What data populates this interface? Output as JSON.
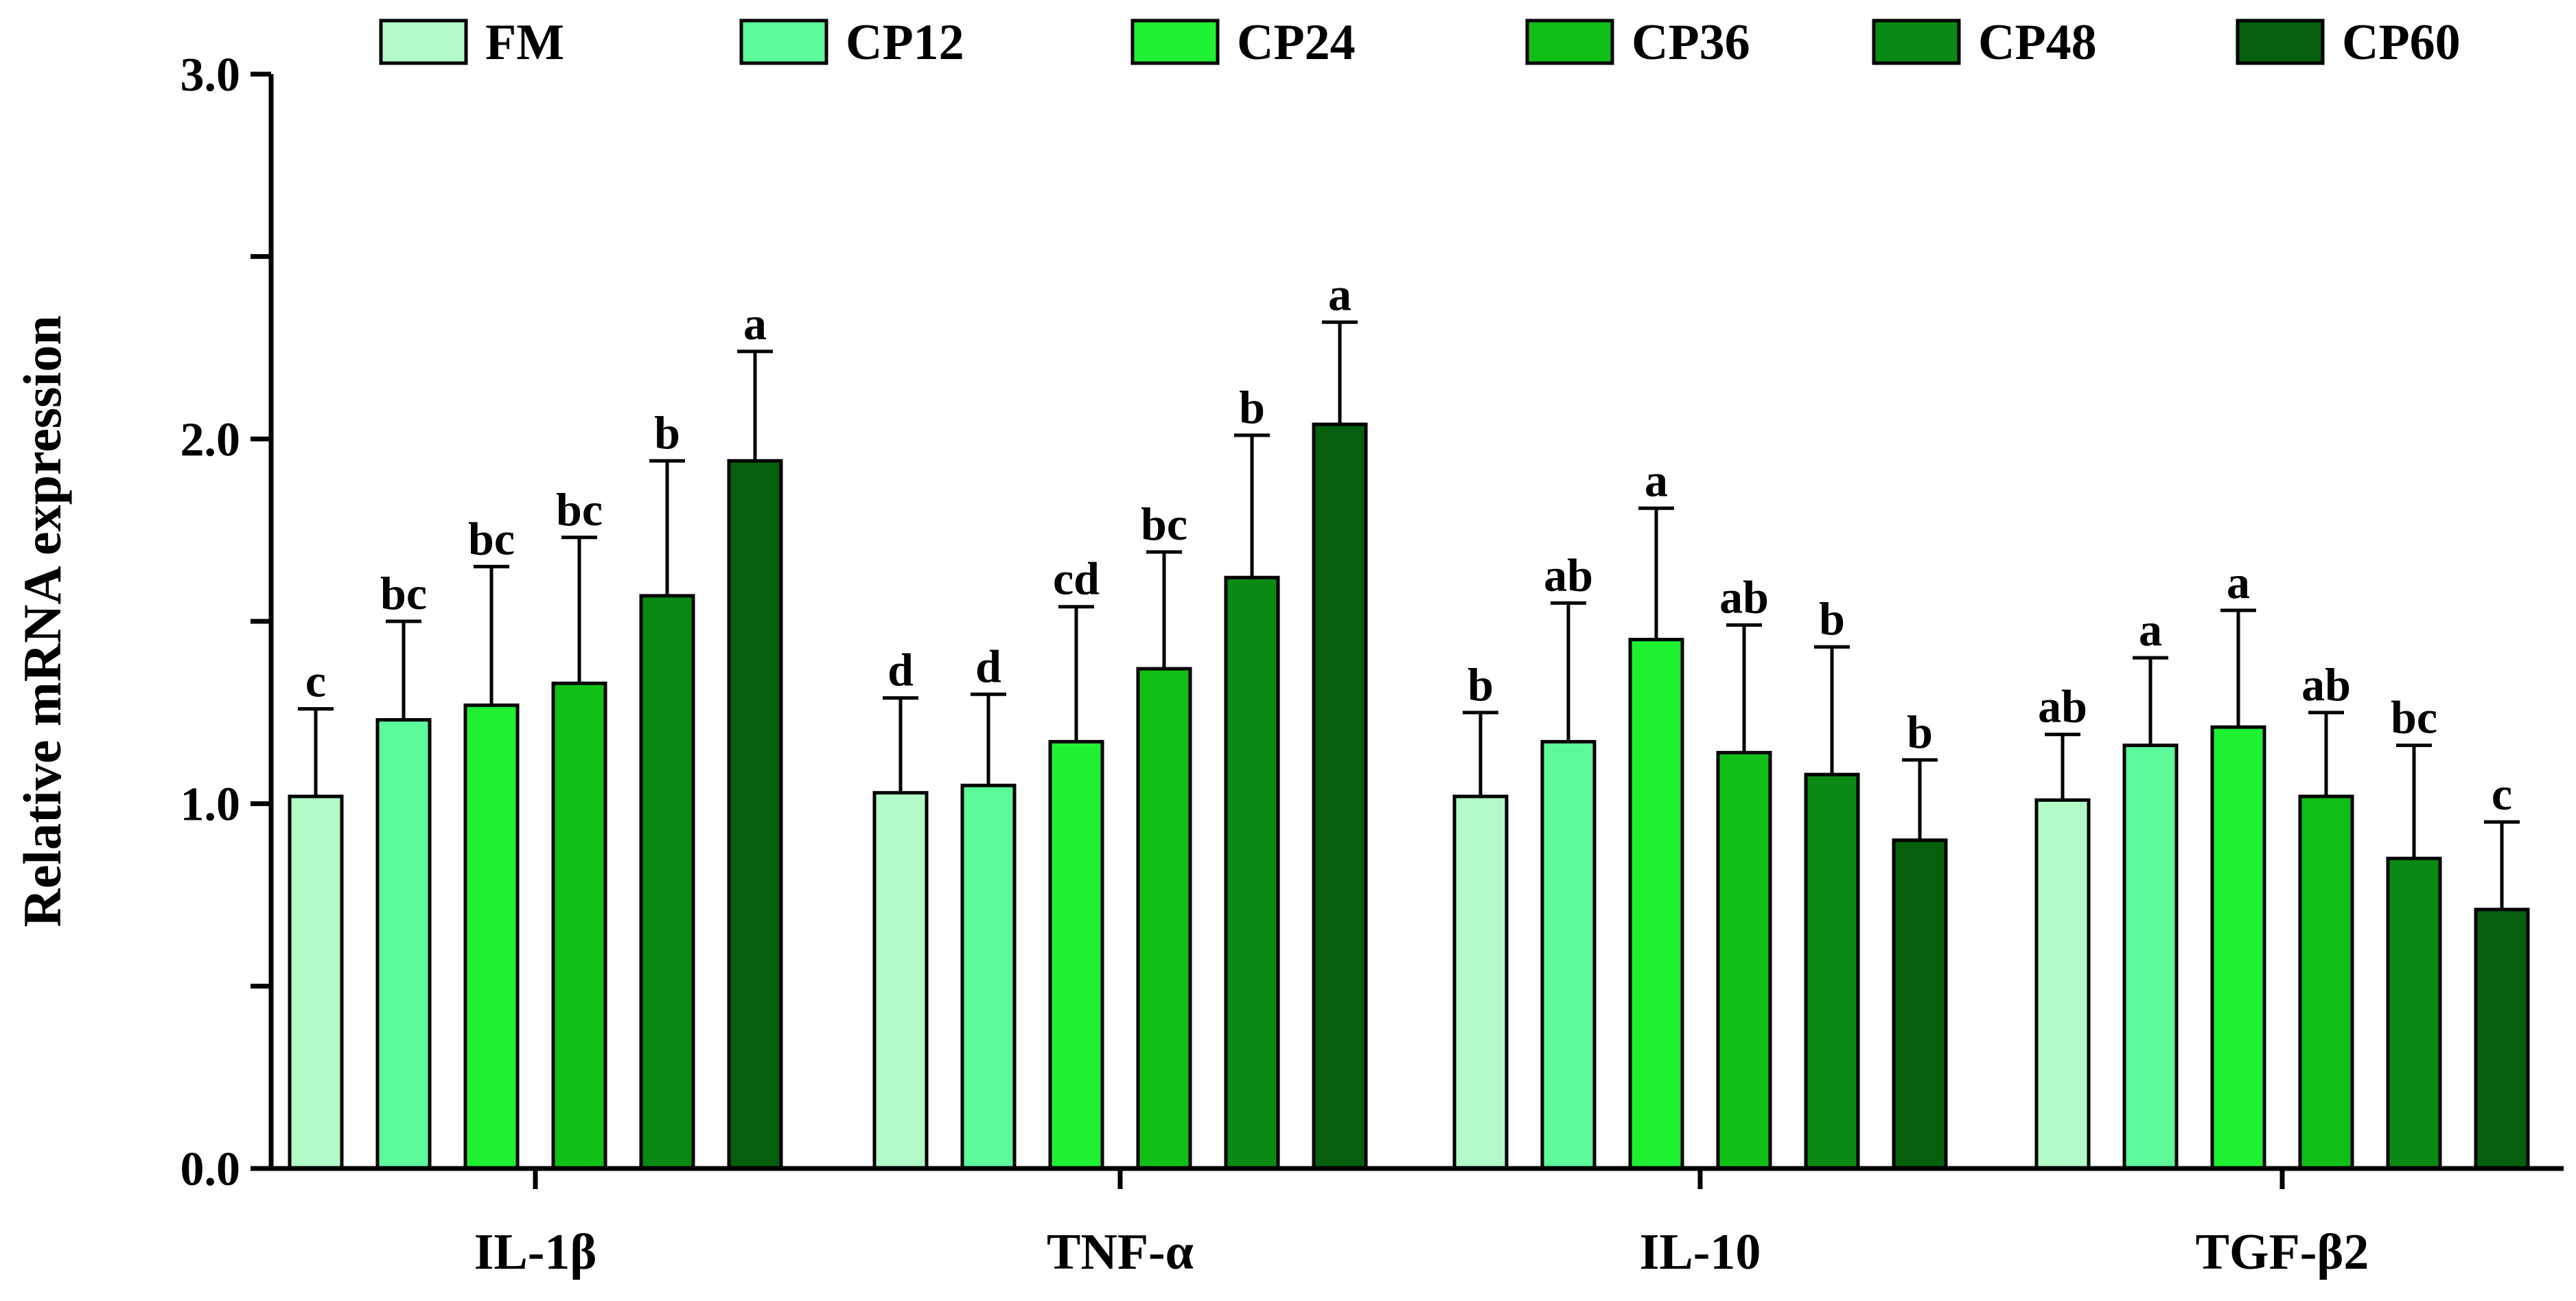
{
  "chart_data": {
    "type": "bar",
    "title": "",
    "xlabel": "",
    "ylabel": "Relative mRNA expression",
    "ylim": [
      0,
      3.0
    ],
    "y_ticks": [
      {
        "value": 0,
        "label": "0.0"
      },
      {
        "value": 0.5,
        "label": ""
      },
      {
        "value": 1.0,
        "label": "1.0"
      },
      {
        "value": 1.5,
        "label": ""
      },
      {
        "value": 2.0,
        "label": "2.0"
      },
      {
        "value": 2.5,
        "label": ""
      },
      {
        "value": 3.0,
        "label": "3.0"
      }
    ],
    "categories": [
      "IL-1β",
      "TNF-α",
      "IL-10",
      "TGF-β2"
    ],
    "legend_position": "top",
    "series": [
      {
        "name": "FM",
        "color": "#b3fac9",
        "values": [
          1.02,
          1.03,
          1.02,
          1.01
        ],
        "errors": [
          0.24,
          0.26,
          0.23,
          0.18
        ],
        "labels": [
          "c",
          "d",
          "b",
          "ab"
        ]
      },
      {
        "name": "CP12",
        "color": "#5cfa9b",
        "values": [
          1.23,
          1.05,
          1.17,
          1.16
        ],
        "errors": [
          0.27,
          0.25,
          0.38,
          0.24
        ],
        "labels": [
          "bc",
          "d",
          "ab",
          "a"
        ]
      },
      {
        "name": "CP24",
        "color": "#1ef032",
        "values": [
          1.27,
          1.17,
          1.45,
          1.21
        ],
        "errors": [
          0.38,
          0.37,
          0.36,
          0.32
        ],
        "labels": [
          "bc",
          "cd",
          "a",
          "a"
        ]
      },
      {
        "name": "CP36",
        "color": "#12bf17",
        "values": [
          1.33,
          1.37,
          1.14,
          1.02
        ],
        "errors": [
          0.4,
          0.32,
          0.35,
          0.23
        ],
        "labels": [
          "bc",
          "bc",
          "ab",
          "ab"
        ]
      },
      {
        "name": "CP48",
        "color": "#0a8a14",
        "values": [
          1.57,
          1.62,
          1.08,
          0.85
        ],
        "errors": [
          0.37,
          0.39,
          0.35,
          0.31
        ],
        "labels": [
          "b",
          "b",
          "b",
          "bc"
        ]
      },
      {
        "name": "CP60",
        "color": "#055f0e",
        "values": [
          1.94,
          2.04,
          0.9,
          0.71
        ],
        "errors": [
          0.3,
          0.28,
          0.22,
          0.24
        ],
        "labels": [
          "a",
          "a",
          "b",
          "c"
        ]
      }
    ]
  }
}
